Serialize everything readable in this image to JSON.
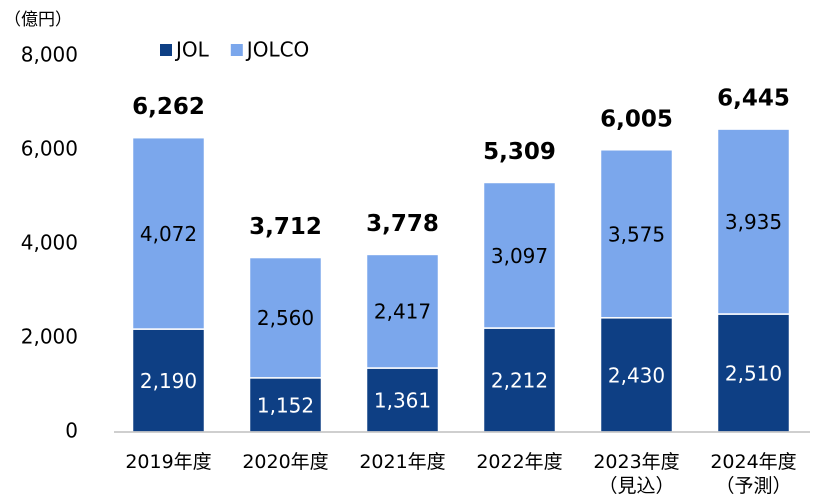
{
  "chart_data": {
    "type": "stacked_bar",
    "y_unit_label": "（億円）",
    "categories": [
      "2019年度",
      "2020年度",
      "2021年度",
      "2022年度",
      "2023年度\n（見込）",
      "2024年度\n（予測）"
    ],
    "series": [
      {
        "name": "JOL",
        "color": "#0e3f84",
        "label_color": "#ffffff",
        "values": [
          2190,
          1152,
          1361,
          2212,
          2430,
          2510
        ],
        "value_labels": [
          "2,190",
          "1,152",
          "1,361",
          "2,212",
          "2,430",
          "2,510"
        ]
      },
      {
        "name": "JOLCO",
        "color": "#7ba7ec",
        "label_color": "#000000",
        "values": [
          4072,
          2560,
          2417,
          3097,
          3575,
          3935
        ],
        "value_labels": [
          "4,072",
          "2,560",
          "2,417",
          "3,097",
          "3,575",
          "3,935"
        ]
      }
    ],
    "totals": [
      6262,
      3712,
      3778,
      5309,
      6005,
      6445
    ],
    "total_labels": [
      "6,262",
      "3,712",
      "3,778",
      "5,309",
      "6,005",
      "6,445"
    ],
    "ylim": [
      0,
      8000
    ],
    "yticks": [
      0,
      {
        "value": 2000,
        "label": "2,000"
      },
      {
        "value": 4000,
        "label": "4,000"
      },
      {
        "value": 6000,
        "label": "6,000"
      },
      {
        "value": 8000,
        "label": "8,000"
      }
    ],
    "grid": false
  }
}
